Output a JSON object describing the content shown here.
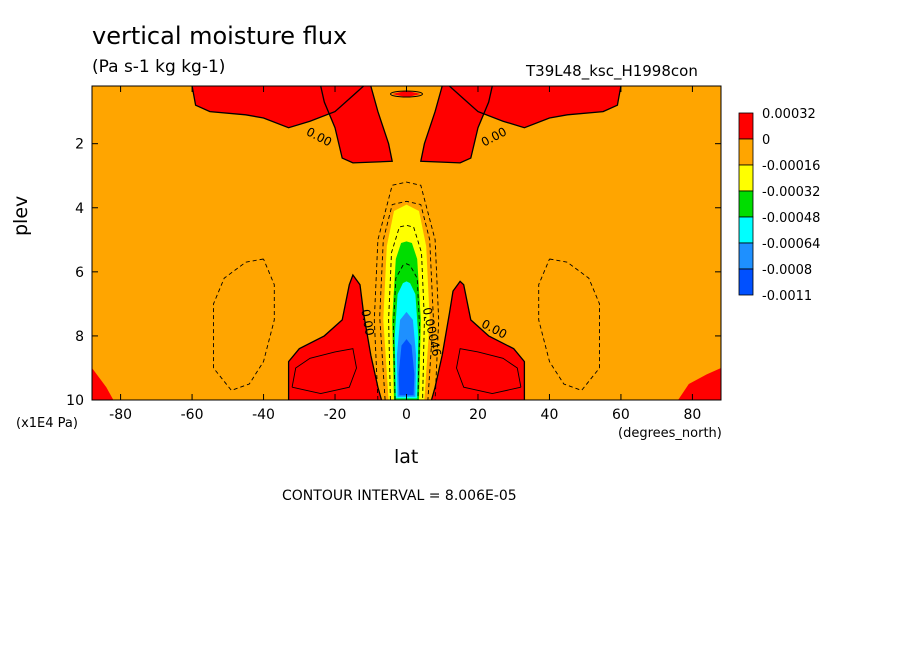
{
  "chart_data": {
    "type": "contour",
    "title": "vertical moisture flux",
    "units": "(Pa s-1 kg kg-1)",
    "run_id": "T39L48_ksc_H1998con",
    "xlabel": "lat",
    "xunits": "(degrees_north)",
    "ylabel": "plev",
    "yunits": "(x1E4 Pa)",
    "xlim": [
      -88,
      88
    ],
    "ylim": [
      10,
      0.2
    ],
    "xticks": [
      -80,
      -60,
      -40,
      -20,
      0,
      20,
      40,
      60,
      80
    ],
    "yticks": [
      2,
      4,
      6,
      8,
      10
    ],
    "contour_interval_text": "CONTOUR INTERVAL = 8.006E-05",
    "contour_labels": [
      "0.00",
      "0.00",
      "0.00",
      "0.00",
      "0.00046"
    ],
    "colorbar": {
      "levels": [
        "0.00032",
        "0",
        "-0.00016",
        "-0.00032",
        "-0.00048",
        "-0.00064",
        "-0.0008",
        "-0.0011"
      ],
      "colors": [
        "#ff0000",
        "#ffa500",
        "#ffff00",
        "#00dd00",
        "#00ffff",
        "#1e90ff",
        "#0050ff"
      ]
    },
    "regions": [
      {
        "level": "positive",
        "color": "#ff0000",
        "poly": [
          [
            -60,
            0.2
          ],
          [
            -59,
            0.8
          ],
          [
            -55,
            1.0
          ],
          [
            -45,
            1.1
          ],
          [
            -40,
            1.2
          ],
          [
            -33,
            1.5
          ],
          [
            -27,
            1.3
          ],
          [
            -20,
            1.0
          ],
          [
            -15,
            0.5
          ],
          [
            -12,
            0.2
          ]
        ]
      },
      {
        "level": "positive",
        "color": "#ff0000",
        "poly": [
          [
            60,
            0.2
          ],
          [
            59,
            0.8
          ],
          [
            55,
            1.0
          ],
          [
            45,
            1.1
          ],
          [
            40,
            1.2
          ],
          [
            33,
            1.5
          ],
          [
            27,
            1.3
          ],
          [
            20,
            1.0
          ],
          [
            15,
            0.5
          ],
          [
            12,
            0.2
          ]
        ]
      },
      {
        "level": "positive",
        "color": "#ff0000",
        "poly": [
          [
            -10,
            0.2
          ],
          [
            -8,
            1.0
          ],
          [
            -5,
            2.0
          ],
          [
            -4,
            2.55
          ],
          [
            -15,
            2.6
          ],
          [
            -18,
            2.45
          ],
          [
            -20,
            1.5
          ],
          [
            -23,
            0.7
          ],
          [
            -24,
            0.2
          ]
        ]
      },
      {
        "level": "positive",
        "color": "#ff0000",
        "poly": [
          [
            10,
            0.2
          ],
          [
            8,
            1.0
          ],
          [
            5,
            2.0
          ],
          [
            4,
            2.55
          ],
          [
            15,
            2.6
          ],
          [
            18,
            2.45
          ],
          [
            20,
            1.5
          ],
          [
            23,
            0.7
          ],
          [
            24,
            0.2
          ]
        ]
      },
      {
        "level": "positive",
        "color": "#ff0000",
        "poly": [
          [
            -4,
            0.45
          ],
          [
            0,
            0.35
          ],
          [
            4,
            0.45
          ],
          [
            0,
            0.55
          ]
        ]
      },
      {
        "level": "positive",
        "color": "#ff0000",
        "poly": [
          [
            -33,
            10
          ],
          [
            -33,
            8.8
          ],
          [
            -30,
            8.4
          ],
          [
            -23,
            8.0
          ],
          [
            -18,
            7.5
          ],
          [
            -16,
            6.4
          ],
          [
            -15,
            6.1
          ],
          [
            -13,
            6.4
          ],
          [
            -12,
            7.3
          ],
          [
            -10,
            8.6
          ],
          [
            -8,
            9.6
          ],
          [
            -7,
            10
          ]
        ]
      },
      {
        "level": "positive",
        "color": "#ff0000",
        "poly": [
          [
            33,
            10
          ],
          [
            33,
            8.8
          ],
          [
            30,
            8.4
          ],
          [
            23,
            8.0
          ],
          [
            18,
            7.5
          ],
          [
            16,
            6.4
          ],
          [
            15,
            6.3
          ],
          [
            13,
            6.6
          ],
          [
            12,
            7.3
          ],
          [
            10,
            8.6
          ],
          [
            8,
            9.6
          ],
          [
            7,
            10
          ]
        ]
      },
      {
        "level": "positive",
        "color": "#ff0000",
        "poly": [
          [
            -88,
            9.0
          ],
          [
            -84,
            9.6
          ],
          [
            -82,
            10
          ],
          [
            -88,
            10
          ]
        ]
      },
      {
        "level": "positive",
        "color": "#ff0000",
        "poly": [
          [
            88,
            9.0
          ],
          [
            84,
            9.2
          ],
          [
            79,
            9.5
          ],
          [
            76,
            10
          ],
          [
            88,
            10
          ]
        ]
      },
      {
        "level": "-0.00016",
        "color": "#ffff00",
        "poly": [
          [
            -5,
            10
          ],
          [
            -6.5,
            7.5
          ],
          [
            -5.5,
            5.2
          ],
          [
            -3.5,
            4.1
          ],
          [
            0,
            3.9
          ],
          [
            3.5,
            4.1
          ],
          [
            5.5,
            5.2
          ],
          [
            6.5,
            7.5
          ],
          [
            5,
            10
          ]
        ]
      },
      {
        "level": "-0.00032",
        "color": "#00dd00",
        "poly": [
          [
            -3.5,
            10
          ],
          [
            -4,
            7.5
          ],
          [
            -3,
            5.6
          ],
          [
            -1.5,
            5.1
          ],
          [
            0,
            5.05
          ],
          [
            1.5,
            5.1
          ],
          [
            3,
            5.6
          ],
          [
            4,
            7.5
          ],
          [
            3.5,
            10
          ]
        ]
      },
      {
        "level": "-0.00048",
        "color": "#00ffff",
        "poly": [
          [
            -3,
            9.95
          ],
          [
            -3.3,
            8.0
          ],
          [
            -2.5,
            6.7
          ],
          [
            -1,
            6.35
          ],
          [
            0,
            6.3
          ],
          [
            1,
            6.35
          ],
          [
            2.5,
            6.7
          ],
          [
            3.3,
            8.0
          ],
          [
            3,
            9.95
          ]
        ]
      },
      {
        "level": "-0.00064",
        "color": "#1e90ff",
        "poly": [
          [
            -2.5,
            9.9
          ],
          [
            -2.7,
            8.6
          ],
          [
            -1.8,
            7.5
          ],
          [
            0,
            7.25
          ],
          [
            1.8,
            7.5
          ],
          [
            2.7,
            8.6
          ],
          [
            2.5,
            9.9
          ]
        ]
      },
      {
        "level": "-0.0008",
        "color": "#0050ff",
        "poly": [
          [
            -2.0,
            9.85
          ],
          [
            -2.2,
            9.2
          ],
          [
            -1.4,
            8.3
          ],
          [
            0,
            8.1
          ],
          [
            1.4,
            8.3
          ],
          [
            2.2,
            9.2
          ],
          [
            2.0,
            9.85
          ]
        ]
      }
    ],
    "contours_dashed": [
      [
        [
          -40,
          5.6
        ],
        [
          -45,
          5.7
        ],
        [
          -51,
          6.2
        ],
        [
          -54,
          7.0
        ],
        [
          -54,
          9.0
        ],
        [
          -49,
          9.7
        ],
        [
          -44,
          9.5
        ],
        [
          -40,
          8.8
        ],
        [
          -37,
          7.5
        ],
        [
          -37,
          6.4
        ],
        [
          -40,
          5.6
        ]
      ],
      [
        [
          40,
          5.6
        ],
        [
          45,
          5.7
        ],
        [
          51,
          6.2
        ],
        [
          54,
          7.0
        ],
        [
          54,
          9.0
        ],
        [
          49,
          9.7
        ],
        [
          44,
          9.5
        ],
        [
          40,
          8.8
        ],
        [
          37,
          7.5
        ],
        [
          37,
          6.4
        ],
        [
          40,
          5.6
        ]
      ],
      [
        [
          -8,
          10
        ],
        [
          -9,
          7.5
        ],
        [
          -8,
          5.0
        ],
        [
          -4,
          3.3
        ],
        [
          0,
          3.2
        ],
        [
          4,
          3.3
        ],
        [
          8,
          5.0
        ],
        [
          9,
          7.5
        ],
        [
          8,
          10
        ]
      ],
      [
        [
          -6,
          10
        ],
        [
          -7.5,
          7.4
        ],
        [
          -6.5,
          5.0
        ],
        [
          -4,
          3.9
        ],
        [
          0,
          3.8
        ],
        [
          4,
          3.9
        ],
        [
          6.5,
          5.0
        ],
        [
          7.5,
          7.4
        ],
        [
          6,
          10
        ]
      ],
      [
        [
          -4.5,
          10
        ],
        [
          -5,
          7.5
        ],
        [
          -4.2,
          5.4
        ],
        [
          -2,
          4.6
        ],
        [
          0,
          4.55
        ],
        [
          2,
          4.6
        ],
        [
          4.2,
          5.4
        ],
        [
          5,
          7.5
        ],
        [
          4.5,
          10
        ]
      ],
      [
        [
          -3.2,
          10
        ],
        [
          -3.7,
          7.8
        ],
        [
          -3,
          6.2
        ],
        [
          -1,
          5.8
        ],
        [
          0,
          5.75
        ],
        [
          1,
          5.8
        ],
        [
          3,
          6.2
        ],
        [
          3.7,
          7.8
        ],
        [
          3.2,
          10
        ]
      ]
    ],
    "contours_zero": [
      [
        [
          -33,
          10
        ],
        [
          -33,
          8.8
        ],
        [
          -30,
          8.4
        ],
        [
          -23,
          8.0
        ],
        [
          -18,
          7.5
        ],
        [
          -16,
          6.4
        ],
        [
          -15,
          6.1
        ],
        [
          -13,
          6.4
        ],
        [
          -12,
          7.3
        ],
        [
          -10,
          8.6
        ],
        [
          -8,
          9.6
        ],
        [
          -7,
          10
        ]
      ],
      [
        [
          33,
          10
        ],
        [
          33,
          8.8
        ],
        [
          30,
          8.4
        ],
        [
          23,
          8.0
        ],
        [
          18,
          7.5
        ],
        [
          16,
          6.4
        ],
        [
          15,
          6.3
        ],
        [
          13,
          6.6
        ],
        [
          12,
          7.3
        ],
        [
          10,
          8.6
        ],
        [
          8,
          9.6
        ],
        [
          7,
          10
        ]
      ],
      [
        [
          -60,
          0.2
        ],
        [
          -59,
          0.8
        ],
        [
          -55,
          1.0
        ],
        [
          -45,
          1.1
        ],
        [
          -40,
          1.2
        ],
        [
          -33,
          1.5
        ],
        [
          -27,
          1.3
        ],
        [
          -20,
          1.0
        ],
        [
          -15,
          0.5
        ],
        [
          -12,
          0.2
        ]
      ],
      [
        [
          60,
          0.2
        ],
        [
          59,
          0.8
        ],
        [
          55,
          1.0
        ],
        [
          45,
          1.1
        ],
        [
          40,
          1.2
        ],
        [
          33,
          1.5
        ],
        [
          27,
          1.3
        ],
        [
          20,
          1.0
        ],
        [
          15,
          0.5
        ],
        [
          12,
          0.2
        ]
      ],
      [
        [
          -10,
          0.2
        ],
        [
          -8,
          1.0
        ],
        [
          -5,
          2.0
        ],
        [
          -4,
          2.55
        ],
        [
          -15,
          2.6
        ],
        [
          -18,
          2.45
        ],
        [
          -20,
          1.5
        ],
        [
          -23,
          0.7
        ],
        [
          -24,
          0.2
        ]
      ],
      [
        [
          10,
          0.2
        ],
        [
          8,
          1.0
        ],
        [
          5,
          2.0
        ],
        [
          4,
          2.55
        ],
        [
          15,
          2.6
        ],
        [
          18,
          2.45
        ],
        [
          20,
          1.5
        ],
        [
          23,
          0.7
        ],
        [
          24,
          0.2
        ]
      ]
    ],
    "contours_inner_positive": [
      [
        [
          -32,
          9.6
        ],
        [
          -31,
          9.0
        ],
        [
          -27,
          8.7
        ],
        [
          -20,
          8.5
        ],
        [
          -15,
          8.4
        ],
        [
          -14,
          9.0
        ],
        [
          -16,
          9.6
        ],
        [
          -24,
          9.8
        ],
        [
          -32,
          9.6
        ]
      ],
      [
        [
          32,
          9.6
        ],
        [
          31,
          9.0
        ],
        [
          27,
          8.7
        ],
        [
          20,
          8.5
        ],
        [
          15,
          8.4
        ],
        [
          14,
          9.0
        ],
        [
          16,
          9.6
        ],
        [
          24,
          9.8
        ],
        [
          32,
          9.6
        ]
      ]
    ]
  }
}
